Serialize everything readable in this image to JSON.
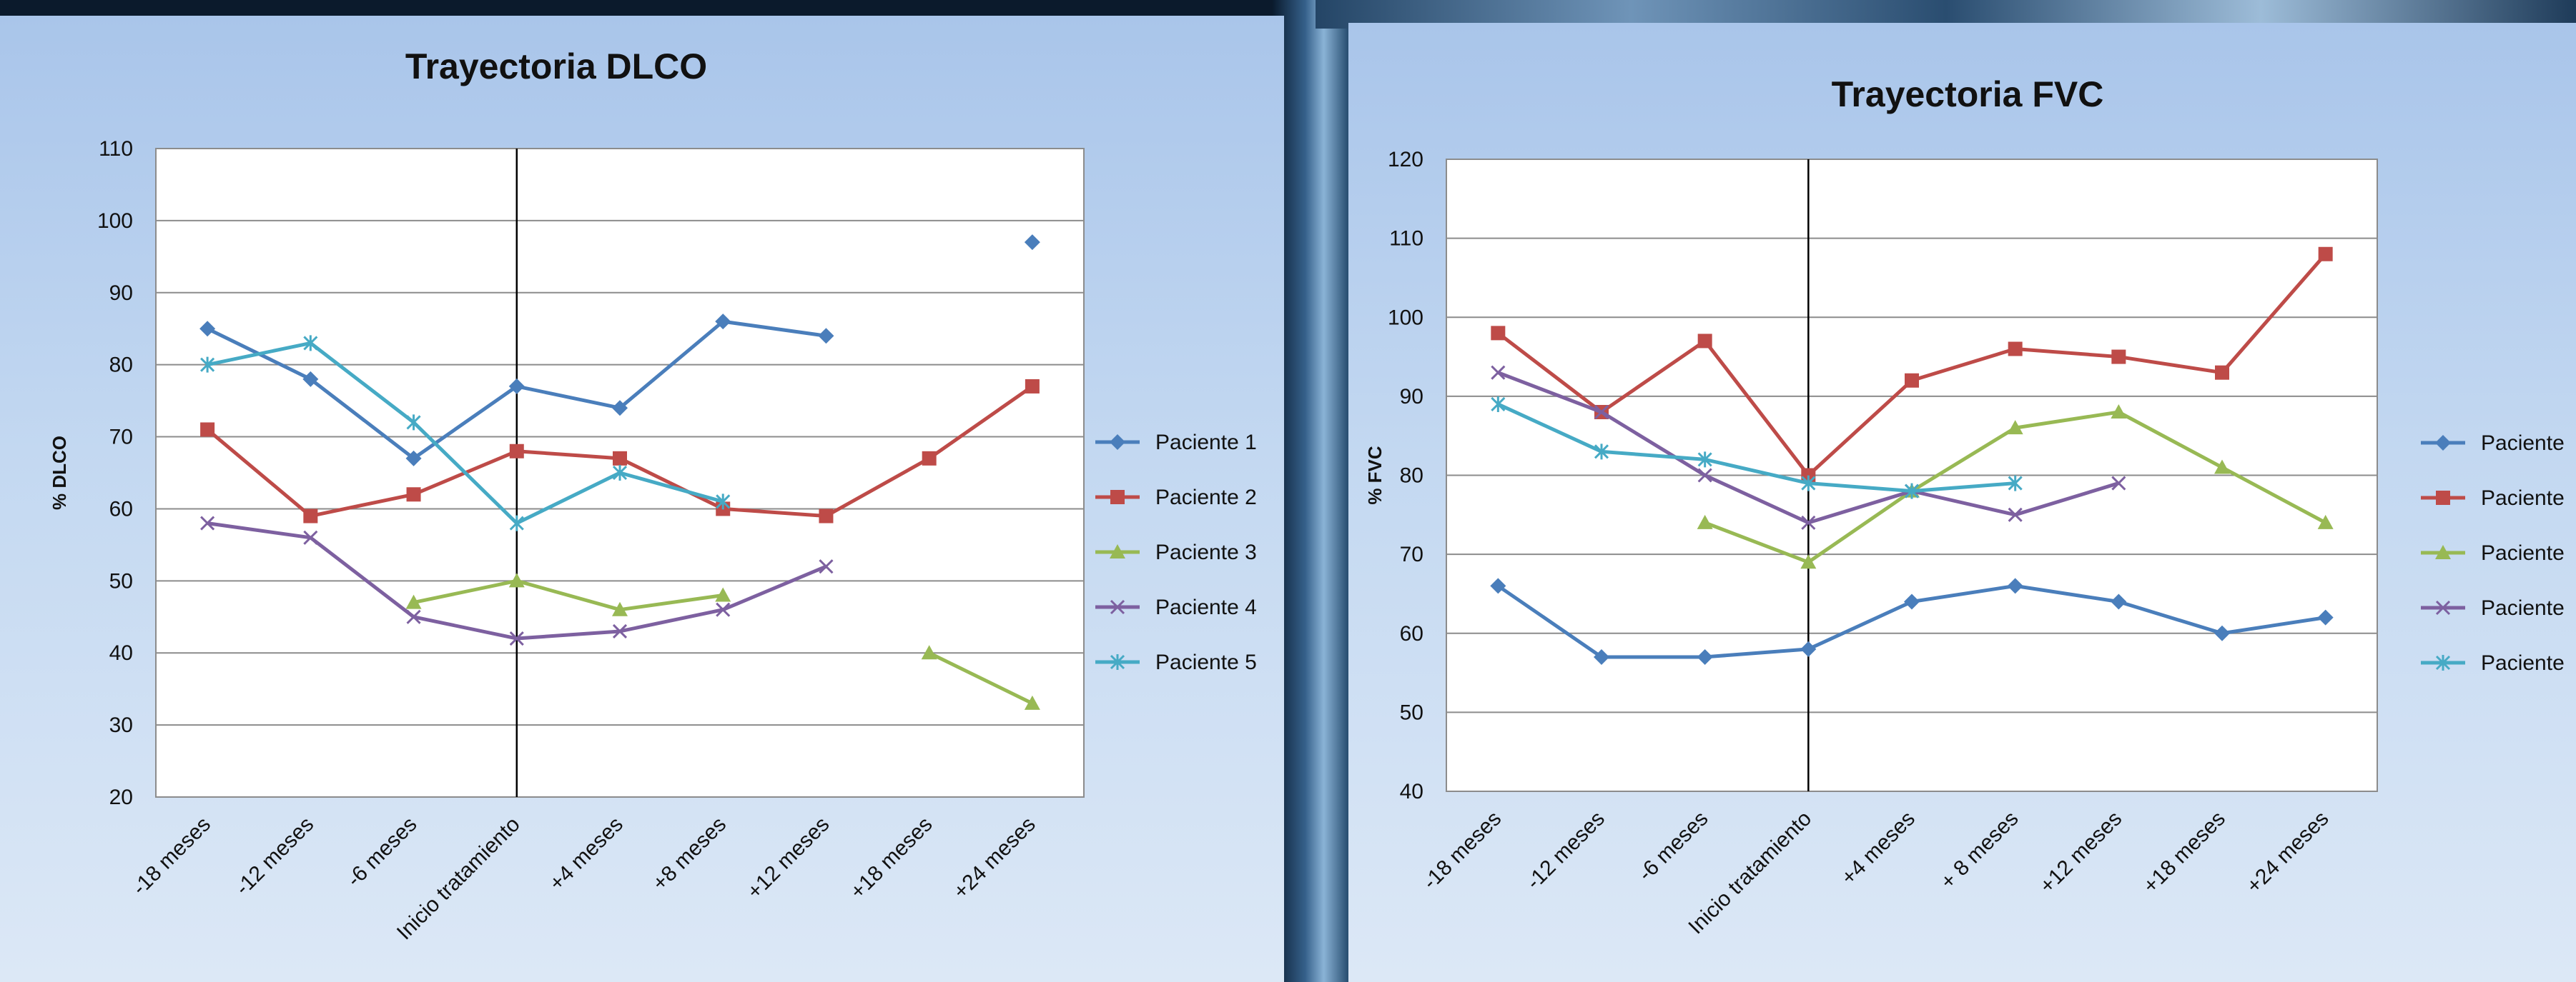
{
  "chart_data": [
    {
      "type": "line",
      "title": "Trayectoria DLCO",
      "xlabel": "",
      "ylabel": "% DLCO",
      "ylim": [
        20,
        110
      ],
      "ystep": 10,
      "grid": true,
      "legend": "right",
      "vertical_marker_category": "Inicio tratamiento",
      "categories": [
        "-18 meses",
        "-12 meses",
        "-6 meses",
        "Inicio tratamiento",
        "+4 meses",
        "+8 meses",
        "+12 meses",
        "+18 meses",
        "+24 meses"
      ],
      "series": [
        {
          "name": "Paciente 1",
          "color": "#4a7ebb",
          "marker": "diamond",
          "values": [
            85,
            78,
            67,
            77,
            74,
            86,
            84,
            null,
            97
          ]
        },
        {
          "name": "Paciente 2",
          "color": "#be4b48",
          "marker": "square",
          "values": [
            71,
            59,
            62,
            68,
            67,
            60,
            59,
            67,
            77
          ]
        },
        {
          "name": "Paciente 3",
          "color": "#98b954",
          "marker": "triangle",
          "values": [
            null,
            null,
            47,
            50,
            46,
            48,
            null,
            40,
            33
          ]
        },
        {
          "name": "Paciente 4",
          "color": "#7d60a0",
          "marker": "x",
          "values": [
            58,
            56,
            45,
            42,
            43,
            46,
            52,
            null,
            null
          ]
        },
        {
          "name": "Paciente 5",
          "color": "#46aac5",
          "marker": "star",
          "values": [
            80,
            83,
            72,
            58,
            65,
            61,
            null,
            null,
            null
          ]
        }
      ]
    },
    {
      "type": "line",
      "title": "Trayectoria  FVC",
      "xlabel": "",
      "ylabel": "% FVC",
      "ylim": [
        40,
        120
      ],
      "ystep": 10,
      "grid": true,
      "legend": "right",
      "vertical_marker_category": "Inicio tratamiento",
      "categories": [
        "-18 meses",
        "-12 meses",
        "-6 meses",
        "Inicio tratamiento",
        "+4 meses",
        "+ 8 meses",
        "+12 meses",
        "+18 meses",
        "+24 meses"
      ],
      "series": [
        {
          "name": "Paciente",
          "color": "#4a7ebb",
          "marker": "diamond",
          "values": [
            66,
            57,
            57,
            58,
            64,
            66,
            64,
            60,
            62
          ]
        },
        {
          "name": "Paciente",
          "color": "#be4b48",
          "marker": "square",
          "values": [
            98,
            88,
            97,
            80,
            92,
            96,
            95,
            93,
            108
          ]
        },
        {
          "name": "Paciente",
          "color": "#98b954",
          "marker": "triangle",
          "values": [
            null,
            null,
            74,
            69,
            78,
            86,
            88,
            81,
            74
          ]
        },
        {
          "name": "Paciente",
          "color": "#7d60a0",
          "marker": "x",
          "values": [
            93,
            88,
            80,
            74,
            78,
            75,
            79,
            null,
            null
          ]
        },
        {
          "name": "Paciente",
          "color": "#46aac5",
          "marker": "star",
          "values": [
            89,
            83,
            82,
            79,
            78,
            79,
            null,
            null,
            null
          ]
        }
      ]
    }
  ]
}
